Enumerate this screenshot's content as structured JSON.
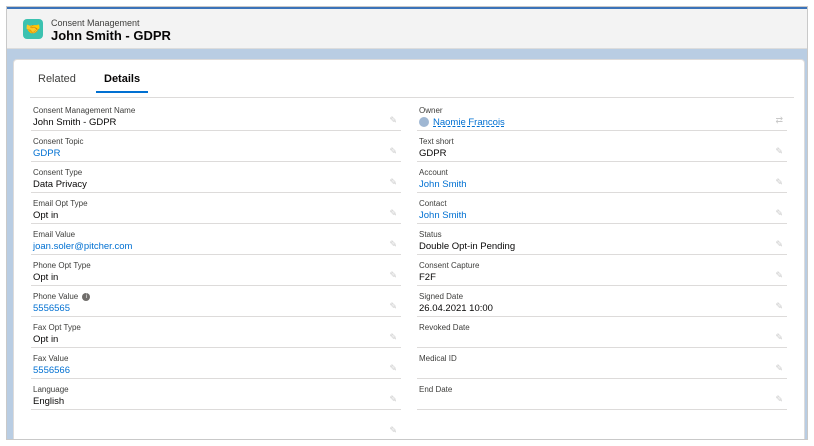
{
  "header": {
    "object_type": "Consent Management",
    "title": "John Smith - GDPR",
    "icon": "handshake-icon"
  },
  "tabs": [
    {
      "label": "Related",
      "active": false
    },
    {
      "label": "Details",
      "active": true
    }
  ],
  "left": [
    {
      "label": "Consent Management Name",
      "value": "John Smith - GDPR",
      "link": false
    },
    {
      "label": "Consent Topic",
      "value": "GDPR",
      "link": true
    },
    {
      "label": "Consent Type",
      "value": "Data Privacy",
      "link": false
    },
    {
      "label": "Email Opt Type",
      "value": "Opt in",
      "link": false
    },
    {
      "label": "Email Value",
      "value": "joan.soler@pitcher.com",
      "link": true
    },
    {
      "label": "Phone Opt Type",
      "value": "Opt in",
      "link": false
    },
    {
      "label": "Phone Value",
      "value": "5556565",
      "link": true,
      "info": true
    },
    {
      "label": "Fax Opt Type",
      "value": "Opt in",
      "link": false
    },
    {
      "label": "Fax Value",
      "value": "5556566",
      "link": true
    },
    {
      "label": "Language",
      "value": "English",
      "link": false
    },
    {
      "label": "",
      "value": "",
      "link": false
    }
  ],
  "right": [
    {
      "label": "Owner",
      "value": "Naomie Francois",
      "link": true,
      "owner": true
    },
    {
      "label": "Text short",
      "value": "GDPR",
      "link": false
    },
    {
      "label": "Account",
      "value": "John Smith",
      "link": true
    },
    {
      "label": "Contact",
      "value": "John Smith",
      "link": true
    },
    {
      "label": "Status",
      "value": "Double Opt-in Pending",
      "link": false
    },
    {
      "label": "Consent Capture",
      "value": "F2F",
      "link": false
    },
    {
      "label": "Signed Date",
      "value": "26.04.2021 10:00",
      "link": false
    },
    {
      "label": "Revoked Date",
      "value": "",
      "link": false
    },
    {
      "label": "Medical ID",
      "value": "",
      "link": false
    },
    {
      "label": "End Date",
      "value": "",
      "link": false
    }
  ]
}
